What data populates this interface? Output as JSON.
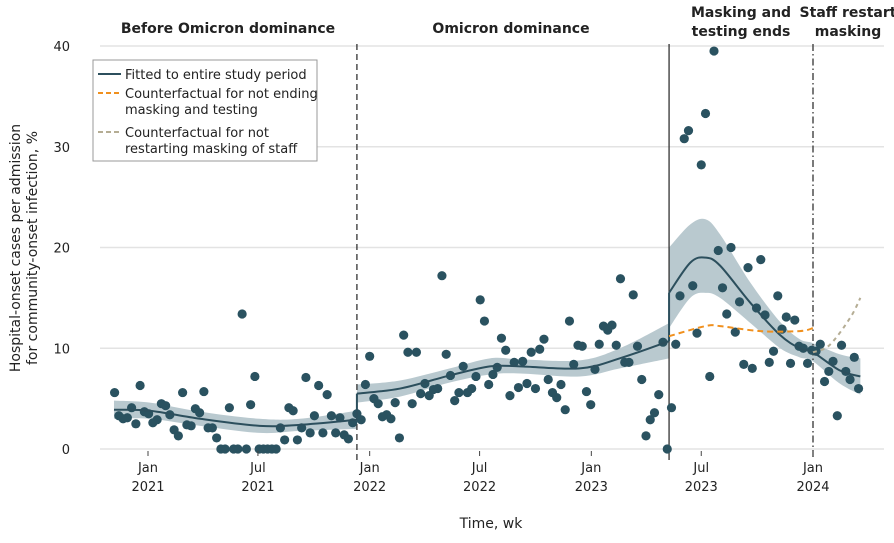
{
  "chart_data": {
    "type": "scatter",
    "title": "",
    "xlabel": "Time, wk",
    "ylabel": [
      "Hospital-onset cases per admission",
      "for community-onset infection, %"
    ],
    "ylim": [
      0,
      40
    ],
    "yticks": [
      0,
      10,
      20,
      30,
      40
    ],
    "xticks": [
      {
        "date": "2021-01-01",
        "line1": "Jan",
        "line2": "2021"
      },
      {
        "date": "2021-07-01",
        "line1": "Jul",
        "line2": "2021"
      },
      {
        "date": "2022-01-01",
        "line1": "Jan",
        "line2": "2022"
      },
      {
        "date": "2022-07-01",
        "line1": "Jul",
        "line2": "2022"
      },
      {
        "date": "2023-01-01",
        "line1": "Jan",
        "line2": "2023"
      },
      {
        "date": "2023-07-01",
        "line1": "Jul",
        "line2": "2023"
      },
      {
        "date": "2024-01-01",
        "line1": "Jan",
        "line2": "2024"
      }
    ],
    "grid": "horizontal",
    "legend_position": "top-left",
    "periods": [
      {
        "label": [
          "Before Omicron dominance"
        ]
      },
      {
        "label": [
          "Omicron dominance"
        ]
      },
      {
        "label": [
          "Masking and",
          "testing ends"
        ]
      },
      {
        "label": [
          "Staff restart",
          "masking"
        ]
      }
    ],
    "breakpoints": [
      {
        "date": "2021-12-11",
        "style": "dashed"
      },
      {
        "date": "2023-05-09",
        "style": "solid"
      },
      {
        "date": "2024-01-01",
        "style": "dashdot"
      }
    ],
    "colors": {
      "points": "#2a5260",
      "fit": "#2c4f5d",
      "band": "#b9c9cf",
      "counterfactual_masking_testing": "#f0901e",
      "counterfactual_staff": "#b5ad94",
      "grid": "#e3e3e3"
    },
    "points": [
      [
        "2020-11-07",
        5.6
      ],
      [
        "2020-11-14",
        3.3
      ],
      [
        "2020-11-21",
        3.0
      ],
      [
        "2020-11-28",
        3.1
      ],
      [
        "2020-12-05",
        4.1
      ],
      [
        "2020-12-12",
        2.5
      ],
      [
        "2020-12-19",
        6.3
      ],
      [
        "2020-12-26",
        3.7
      ],
      [
        "2021-01-02",
        3.5
      ],
      [
        "2021-01-09",
        2.6
      ],
      [
        "2021-01-16",
        2.9
      ],
      [
        "2021-01-23",
        4.5
      ],
      [
        "2021-01-30",
        4.3
      ],
      [
        "2021-02-06",
        3.4
      ],
      [
        "2021-02-13",
        1.9
      ],
      [
        "2021-02-20",
        1.3
      ],
      [
        "2021-02-27",
        5.6
      ],
      [
        "2021-03-06",
        2.4
      ],
      [
        "2021-03-13",
        2.3
      ],
      [
        "2021-03-20",
        4.0
      ],
      [
        "2021-03-27",
        3.6
      ],
      [
        "2021-04-03",
        5.7
      ],
      [
        "2021-04-10",
        2.1
      ],
      [
        "2021-04-17",
        2.1
      ],
      [
        "2021-04-24",
        1.1
      ],
      [
        "2021-05-01",
        0.0
      ],
      [
        "2021-05-08",
        0.0
      ],
      [
        "2021-05-15",
        4.1
      ],
      [
        "2021-05-22",
        0.0
      ],
      [
        "2021-05-29",
        0.0
      ],
      [
        "2021-06-05",
        13.4
      ],
      [
        "2021-06-12",
        0.0
      ],
      [
        "2021-06-19",
        4.4
      ],
      [
        "2021-06-26",
        7.2
      ],
      [
        "2021-07-03",
        0.0
      ],
      [
        "2021-07-10",
        0.0
      ],
      [
        "2021-07-17",
        0.0
      ],
      [
        "2021-07-24",
        0.0
      ],
      [
        "2021-07-31",
        0.0
      ],
      [
        "2021-08-07",
        2.1
      ],
      [
        "2021-08-14",
        0.9
      ],
      [
        "2021-08-21",
        4.1
      ],
      [
        "2021-08-28",
        3.8
      ],
      [
        "2021-09-04",
        0.9
      ],
      [
        "2021-09-11",
        2.1
      ],
      [
        "2021-09-18",
        7.1
      ],
      [
        "2021-09-25",
        1.6
      ],
      [
        "2021-10-02",
        3.3
      ],
      [
        "2021-10-09",
        6.3
      ],
      [
        "2021-10-16",
        1.6
      ],
      [
        "2021-10-23",
        5.4
      ],
      [
        "2021-10-30",
        3.3
      ],
      [
        "2021-11-06",
        1.6
      ],
      [
        "2021-11-13",
        3.1
      ],
      [
        "2021-11-20",
        1.4
      ],
      [
        "2021-11-27",
        1.0
      ],
      [
        "2021-12-04",
        2.6
      ],
      [
        "2021-12-11",
        3.5
      ],
      [
        "2021-12-18",
        2.9
      ],
      [
        "2021-12-25",
        6.4
      ],
      [
        "2022-01-01",
        9.2
      ],
      [
        "2022-01-08",
        5.0
      ],
      [
        "2022-01-15",
        4.5
      ],
      [
        "2022-01-22",
        3.2
      ],
      [
        "2022-01-29",
        3.4
      ],
      [
        "2022-02-05",
        3.0
      ],
      [
        "2022-02-12",
        4.6
      ],
      [
        "2022-02-19",
        1.1
      ],
      [
        "2022-02-26",
        11.3
      ],
      [
        "2022-03-05",
        9.6
      ],
      [
        "2022-03-12",
        4.5
      ],
      [
        "2022-03-19",
        9.6
      ],
      [
        "2022-03-26",
        5.5
      ],
      [
        "2022-04-02",
        6.5
      ],
      [
        "2022-04-09",
        5.3
      ],
      [
        "2022-04-16",
        5.9
      ],
      [
        "2022-04-23",
        6.0
      ],
      [
        "2022-04-30",
        17.2
      ],
      [
        "2022-05-07",
        9.4
      ],
      [
        "2022-05-14",
        7.3
      ],
      [
        "2022-05-21",
        4.8
      ],
      [
        "2022-05-28",
        5.6
      ],
      [
        "2022-06-04",
        8.2
      ],
      [
        "2022-06-11",
        5.6
      ],
      [
        "2022-06-18",
        6.0
      ],
      [
        "2022-06-25",
        7.2
      ],
      [
        "2022-07-02",
        14.8
      ],
      [
        "2022-07-09",
        12.7
      ],
      [
        "2022-07-16",
        6.4
      ],
      [
        "2022-07-23",
        7.4
      ],
      [
        "2022-07-30",
        8.1
      ],
      [
        "2022-08-06",
        11.0
      ],
      [
        "2022-08-13",
        9.8
      ],
      [
        "2022-08-20",
        5.3
      ],
      [
        "2022-08-27",
        8.6
      ],
      [
        "2022-09-03",
        6.1
      ],
      [
        "2022-09-10",
        8.7
      ],
      [
        "2022-09-17",
        6.5
      ],
      [
        "2022-09-24",
        9.6
      ],
      [
        "2022-10-01",
        6.0
      ],
      [
        "2022-10-08",
        9.9
      ],
      [
        "2022-10-15",
        10.9
      ],
      [
        "2022-10-22",
        6.9
      ],
      [
        "2022-10-29",
        5.6
      ],
      [
        "2022-11-05",
        5.1
      ],
      [
        "2022-11-12",
        6.4
      ],
      [
        "2022-11-19",
        3.9
      ],
      [
        "2022-11-26",
        12.7
      ],
      [
        "2022-12-03",
        8.4
      ],
      [
        "2022-12-10",
        10.3
      ],
      [
        "2022-12-17",
        10.2
      ],
      [
        "2022-12-24",
        5.7
      ],
      [
        "2022-12-31",
        4.4
      ],
      [
        "2023-01-07",
        7.9
      ],
      [
        "2023-01-14",
        10.4
      ],
      [
        "2023-01-21",
        12.2
      ],
      [
        "2023-01-28",
        11.8
      ],
      [
        "2023-02-04",
        12.3
      ],
      [
        "2023-02-11",
        10.3
      ],
      [
        "2023-02-18",
        16.9
      ],
      [
        "2023-02-25",
        8.6
      ],
      [
        "2023-03-04",
        8.6
      ],
      [
        "2023-03-11",
        15.3
      ],
      [
        "2023-03-18",
        10.2
      ],
      [
        "2023-03-25",
        6.9
      ],
      [
        "2023-04-01",
        1.3
      ],
      [
        "2023-04-08",
        2.9
      ],
      [
        "2023-04-15",
        3.6
      ],
      [
        "2023-04-22",
        5.4
      ],
      [
        "2023-04-29",
        10.6
      ],
      [
        "2023-05-06",
        0.0
      ],
      [
        "2023-05-13",
        4.1
      ],
      [
        "2023-05-20",
        10.4
      ],
      [
        "2023-05-27",
        15.2
      ],
      [
        "2023-06-03",
        30.8
      ],
      [
        "2023-06-10",
        31.6
      ],
      [
        "2023-06-17",
        16.2
      ],
      [
        "2023-06-24",
        11.5
      ],
      [
        "2023-07-01",
        28.2
      ],
      [
        "2023-07-08",
        33.3
      ],
      [
        "2023-07-15",
        7.2
      ],
      [
        "2023-07-22",
        39.5
      ],
      [
        "2023-07-29",
        19.7
      ],
      [
        "2023-08-05",
        16.0
      ],
      [
        "2023-08-12",
        13.4
      ],
      [
        "2023-08-19",
        20.0
      ],
      [
        "2023-08-26",
        11.6
      ],
      [
        "2023-09-02",
        14.6
      ],
      [
        "2023-09-09",
        8.4
      ],
      [
        "2023-09-16",
        18.0
      ],
      [
        "2023-09-23",
        8.0
      ],
      [
        "2023-09-30",
        14.0
      ],
      [
        "2023-10-07",
        18.8
      ],
      [
        "2023-10-14",
        13.3
      ],
      [
        "2023-10-21",
        8.6
      ],
      [
        "2023-10-28",
        9.7
      ],
      [
        "2023-11-04",
        15.2
      ],
      [
        "2023-11-11",
        11.9
      ],
      [
        "2023-11-18",
        13.1
      ],
      [
        "2023-11-25",
        8.5
      ],
      [
        "2023-12-02",
        12.8
      ],
      [
        "2023-12-09",
        10.2
      ],
      [
        "2023-12-16",
        10.0
      ],
      [
        "2023-12-23",
        8.5
      ],
      [
        "2023-12-30",
        9.8
      ],
      [
        "2024-01-06",
        9.7
      ],
      [
        "2024-01-13",
        10.4
      ],
      [
        "2024-01-20",
        6.7
      ],
      [
        "2024-01-27",
        7.7
      ],
      [
        "2024-02-03",
        8.7
      ],
      [
        "2024-02-10",
        3.3
      ],
      [
        "2024-02-17",
        10.3
      ],
      [
        "2024-02-24",
        7.7
      ],
      [
        "2024-03-02",
        6.9
      ],
      [
        "2024-03-09",
        9.1
      ],
      [
        "2024-03-16",
        6.0
      ]
    ],
    "series": [
      {
        "name": "Fitted to entire study period",
        "style": "solid",
        "segments": [
          [
            [
              "2020-11-06",
              3.9
            ],
            [
              "2021-01-04",
              3.8
            ],
            [
              "2021-03-28",
              3.0
            ],
            [
              "2021-07-04",
              2.3
            ],
            [
              "2021-09-08",
              2.4
            ],
            [
              "2021-12-11",
              2.9
            ]
          ],
          [
            [
              "2021-12-11",
              5.5
            ],
            [
              "2022-02-20",
              6.0
            ],
            [
              "2022-05-13",
              7.3
            ],
            [
              "2022-07-18",
              8.2
            ],
            [
              "2022-09-06",
              8.2
            ],
            [
              "2022-12-13",
              8.0
            ],
            [
              "2023-02-17",
              9.0
            ],
            [
              "2023-05-09",
              10.7
            ]
          ],
          [
            [
              "2023-05-09",
              15.5
            ],
            [
              "2023-06-13",
              18.5
            ],
            [
              "2023-07-08",
              19.0
            ],
            [
              "2023-08-01",
              18.2
            ],
            [
              "2023-09-20",
              14.5
            ],
            [
              "2023-11-08",
              11.3
            ],
            [
              "2023-12-10",
              10.0
            ],
            [
              "2024-01-01",
              9.6
            ],
            [
              "2024-02-14",
              7.8
            ],
            [
              "2024-03-19",
              7.2
            ]
          ]
        ],
        "band_segments": [
          [
            [
              "2020-11-06",
              3.0,
              4.8
            ],
            [
              "2021-01-04",
              3.0,
              4.6
            ],
            [
              "2021-03-28",
              2.3,
              3.7
            ],
            [
              "2021-07-04",
              1.6,
              3.0
            ],
            [
              "2021-09-08",
              1.8,
              3.0
            ],
            [
              "2021-12-11",
              2.0,
              3.8
            ]
          ],
          [
            [
              "2021-12-11",
              4.6,
              6.4
            ],
            [
              "2022-02-20",
              5.2,
              6.8
            ],
            [
              "2022-05-13",
              6.6,
              8.0
            ],
            [
              "2022-07-18",
              7.4,
              9.0
            ],
            [
              "2022-09-06",
              7.5,
              8.9
            ],
            [
              "2022-12-13",
              7.2,
              8.8
            ],
            [
              "2023-02-17",
              8.0,
              10.0
            ],
            [
              "2023-05-09",
              9.0,
              12.5
            ]
          ],
          [
            [
              "2023-05-09",
              12.0,
              20.0
            ],
            [
              "2023-06-13",
              15.0,
              22.3
            ],
            [
              "2023-07-08",
              15.5,
              22.8
            ],
            [
              "2023-08-01",
              15.0,
              21.3
            ],
            [
              "2023-09-20",
              12.5,
              16.5
            ],
            [
              "2023-11-08",
              10.0,
              12.6
            ],
            [
              "2023-12-10",
              9.1,
              10.9
            ],
            [
              "2024-01-01",
              8.7,
              10.5
            ],
            [
              "2024-02-14",
              6.5,
              9.4
            ],
            [
              "2024-03-19",
              5.4,
              9.0
            ]
          ]
        ]
      },
      {
        "name": "Counterfactual for not ending masking and testing",
        "style": "dashed",
        "points": [
          [
            "2023-05-09",
            11.2
          ],
          [
            "2023-07-08",
            12.2
          ],
          [
            "2023-08-01",
            12.2
          ],
          [
            "2023-10-06",
            11.7
          ],
          [
            "2023-12-10",
            11.7
          ],
          [
            "2024-01-01",
            12.0
          ]
        ]
      },
      {
        "name": "Counterfactual for not restarting masking of staff",
        "style": "dashed",
        "points": [
          [
            "2024-01-01",
            9.6
          ],
          [
            "2024-01-28",
            10.3
          ],
          [
            "2024-03-02",
            13.0
          ],
          [
            "2024-03-19",
            15.0
          ]
        ]
      }
    ],
    "legend": [
      {
        "lines": [
          "Fitted to entire study period"
        ]
      },
      {
        "lines": [
          "Counterfactual for not ending",
          "masking and testing"
        ]
      },
      {
        "lines": [
          "Counterfactual for not",
          "restarting masking of staff"
        ]
      }
    ]
  }
}
